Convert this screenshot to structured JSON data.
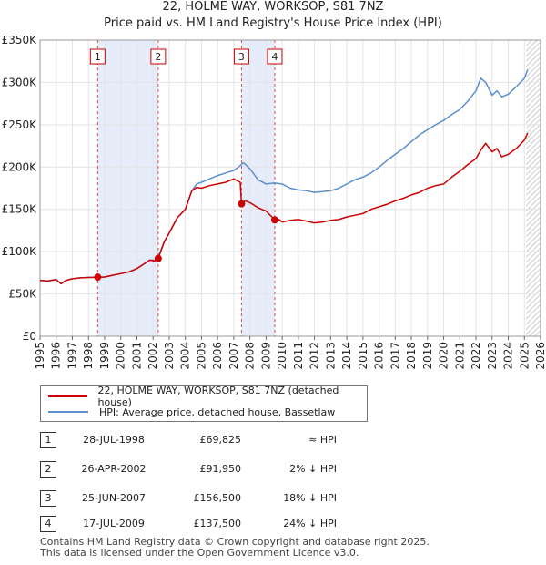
{
  "title_line1": "22, HOLME WAY, WORKSOP, S81 7NZ",
  "title_line2": "Price paid vs. HM Land Registry's House Price Index (HPI)",
  "chart_data": {
    "type": "line",
    "title": "Price paid vs. HM Land Registry's House Price Index (HPI)",
    "xlabel": "",
    "ylabel": "",
    "xlim": [
      1995,
      2026
    ],
    "ylim": [
      0,
      350000
    ],
    "x_ticks": [
      "1995",
      "1996",
      "1997",
      "1998",
      "1999",
      "2000",
      "2001",
      "2002",
      "2003",
      "2004",
      "2005",
      "2006",
      "2007",
      "2008",
      "2009",
      "2010",
      "2011",
      "2012",
      "2013",
      "2014",
      "2015",
      "2016",
      "2017",
      "2018",
      "2019",
      "2020",
      "2021",
      "2022",
      "2023",
      "2024",
      "2025",
      "2026"
    ],
    "y_ticks": [
      {
        "value": 0,
        "label": "£0"
      },
      {
        "value": 50000,
        "label": "£50K"
      },
      {
        "value": 100000,
        "label": "£100K"
      },
      {
        "value": 150000,
        "label": "£150K"
      },
      {
        "value": 200000,
        "label": "£200K"
      },
      {
        "value": 250000,
        "label": "£250K"
      },
      {
        "value": 300000,
        "label": "£300K"
      },
      {
        "value": 350000,
        "label": "£350K"
      }
    ],
    "grid": true,
    "shaded_periods": [
      [
        1998.57,
        2002.32
      ],
      [
        2007.48,
        2009.54
      ]
    ],
    "forecast_from": 2025.1,
    "series": [
      {
        "name": "22, HOLME WAY, WORKSOP, S81 7NZ (detached house)",
        "color": "#cc0000",
        "x": [
          1995,
          1995.5,
          1996,
          1996.3,
          1996.6,
          1997,
          1997.5,
          1998,
          1998.57,
          1999,
          1999.5,
          2000,
          2000.5,
          2001,
          2001.4,
          2001.8,
          2002.1,
          2002.32,
          2002.7,
          2003,
          2003.5,
          2004,
          2004.4,
          2004.7,
          2005,
          2005.5,
          2006,
          2006.5,
          2007,
          2007.4,
          2007.48,
          2007.7,
          2008,
          2008.5,
          2009,
          2009.54,
          2009.8,
          2010,
          2010.5,
          2011,
          2011.5,
          2012,
          2012.5,
          2013,
          2013.5,
          2014,
          2014.5,
          2015,
          2015.5,
          2016,
          2016.5,
          2017,
          2017.5,
          2018,
          2018.5,
          2019,
          2019.5,
          2020,
          2020.5,
          2021,
          2021.5,
          2022,
          2022.3,
          2022.6,
          2023,
          2023.3,
          2023.6,
          2024,
          2024.5,
          2025,
          2025.2
        ],
        "values": [
          66000,
          65500,
          67000,
          62000,
          66000,
          68000,
          69000,
          69500,
          69825,
          70000,
          72000,
          74000,
          76000,
          80000,
          85000,
          90000,
          89000,
          91950,
          112000,
          122000,
          140000,
          150000,
          172000,
          176000,
          175000,
          178000,
          180000,
          182000,
          186000,
          182000,
          156500,
          160000,
          158000,
          152000,
          148000,
          137500,
          138000,
          135000,
          137000,
          138000,
          136000,
          134000,
          135000,
          137000,
          138000,
          141000,
          143000,
          145000,
          150000,
          153000,
          156000,
          160000,
          163000,
          167000,
          170000,
          175000,
          178000,
          180000,
          188000,
          195000,
          203000,
          210000,
          220000,
          228000,
          218000,
          222000,
          212000,
          215000,
          222000,
          232000,
          240000
        ]
      },
      {
        "name": "HPI: Average price, detached house, Bassetlaw",
        "color": "#5b8fd0",
        "x": [
          1995,
          1995.5,
          1996,
          1996.3,
          1996.6,
          1997,
          1997.5,
          1998,
          1998.57,
          1999,
          1999.5,
          2000,
          2000.5,
          2001,
          2001.4,
          2001.8,
          2002.1,
          2002.32,
          2002.7,
          2003,
          2003.5,
          2004,
          2004.4,
          2004.7,
          2005,
          2005.5,
          2006,
          2006.5,
          2007,
          2007.3,
          2007.6,
          2008,
          2008.5,
          2009,
          2009.5,
          2010,
          2010.5,
          2011,
          2011.5,
          2012,
          2012.5,
          2013,
          2013.5,
          2014,
          2014.5,
          2015,
          2015.5,
          2016,
          2016.5,
          2017,
          2017.5,
          2018,
          2018.5,
          2019,
          2019.5,
          2020,
          2020.5,
          2021,
          2021.5,
          2022,
          2022.3,
          2022.6,
          2023,
          2023.3,
          2023.6,
          2024,
          2024.5,
          2025,
          2025.2
        ],
        "values": [
          66000,
          65500,
          67000,
          62000,
          66000,
          68000,
          69000,
          69500,
          69825,
          70000,
          72000,
          74000,
          76000,
          80000,
          85000,
          90000,
          90000,
          93500,
          112000,
          122000,
          140000,
          150000,
          172000,
          180000,
          182000,
          186000,
          190000,
          193000,
          196000,
          200000,
          205000,
          198000,
          185000,
          180000,
          181000,
          180000,
          175000,
          173000,
          172000,
          170000,
          171000,
          172000,
          175000,
          180000,
          185000,
          188000,
          193000,
          200000,
          208000,
          215000,
          222000,
          230000,
          238000,
          244000,
          250000,
          255000,
          262000,
          268000,
          278000,
          290000,
          305000,
          300000,
          285000,
          290000,
          283000,
          286000,
          295000,
          305000,
          315000
        ]
      }
    ],
    "annotations": [
      {
        "label": "1",
        "x": 1998.57,
        "y": 69825
      },
      {
        "label": "2",
        "x": 2002.32,
        "y": 91950
      },
      {
        "label": "3",
        "x": 2007.48,
        "y": 156500
      },
      {
        "label": "4",
        "x": 2009.54,
        "y": 137500
      }
    ]
  },
  "legend": {
    "property": "22, HOLME WAY, WORKSOP, S81 7NZ (detached house)",
    "hpi": "HPI: Average price, detached house, Bassetlaw",
    "property_color": "#cc0000",
    "hpi_color": "#5b8fd0"
  },
  "transactions": [
    {
      "num": "1",
      "date": "28-JUL-1998",
      "price": "£69,825",
      "rel": "≈ HPI"
    },
    {
      "num": "2",
      "date": "26-APR-2002",
      "price": "£91,950",
      "rel": "2% ↓ HPI"
    },
    {
      "num": "3",
      "date": "25-JUN-2007",
      "price": "£156,500",
      "rel": "18% ↓ HPI"
    },
    {
      "num": "4",
      "date": "17-JUL-2009",
      "price": "£137,500",
      "rel": "24% ↓ HPI"
    }
  ],
  "footer_line1": "Contains HM Land Registry data © Crown copyright and database right 2025.",
  "footer_line2": "This data is licensed under the Open Government Licence v3.0."
}
